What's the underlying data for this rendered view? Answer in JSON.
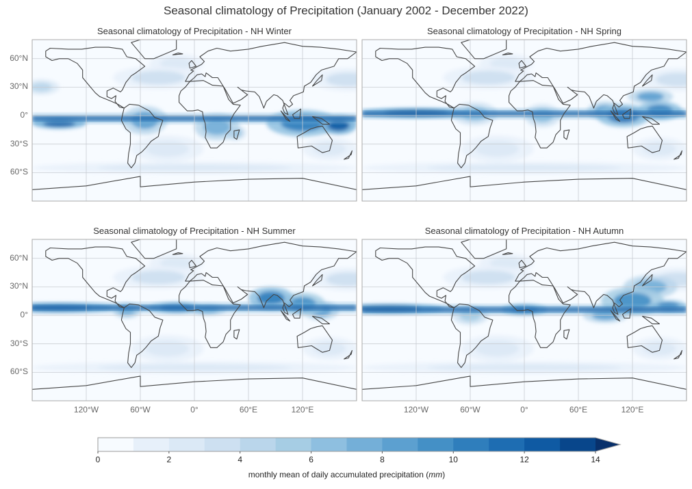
{
  "chart_data": {
    "type": "heatmap",
    "title": "Seasonal climatology of Precipitation (January 2002 - December 2022)",
    "variable": "Precipitation",
    "period": "January 2002 - December 2022",
    "panels": [
      {
        "season": "NH Winter",
        "title": "Seasonal climatology of Precipitation - NH Winter",
        "itcz_lat": -3
      },
      {
        "season": "NH Spring",
        "title": "Seasonal climatology of Precipitation - NH Spring",
        "itcz_lat": 2
      },
      {
        "season": "NH Summer",
        "title": "Seasonal climatology of Precipitation - NH Summer",
        "itcz_lat": 8
      },
      {
        "season": "NH Autumn",
        "title": "Seasonal climatology of Precipitation - NH Autumn",
        "itcz_lat": 6
      }
    ],
    "lat_ticks": [
      "60°N",
      "30°N",
      "0°",
      "30°S",
      "60°S"
    ],
    "lat_values": [
      60,
      30,
      0,
      -30,
      -60
    ],
    "lon_ticks": [
      "120°W",
      "60°W",
      "0°",
      "60°E",
      "120°E"
    ],
    "lon_values": [
      -120,
      -60,
      0,
      60,
      120
    ],
    "lon_range": [
      -180,
      180
    ],
    "lat_range": [
      -90,
      90
    ],
    "colorbar": {
      "min": 0,
      "max": 14,
      "levels": 14,
      "extend": "max",
      "ticks": [
        0,
        2,
        4,
        6,
        8,
        10,
        12,
        14
      ],
      "tick_labels": [
        "0",
        "2",
        "4",
        "6",
        "8",
        "10",
        "12",
        "14"
      ],
      "label_prefix": "monthly mean of daily accumulated precipitation (",
      "label_unit": "mm",
      "label_suffix": ")",
      "colors": [
        "#f7fbff",
        "#e7f0fa",
        "#dbe9f6",
        "#cde0f1",
        "#bad6eb",
        "#a6cde4",
        "#8ebfe0",
        "#74afd8",
        "#5ca0d0",
        "#4490c6",
        "#2f7ebc",
        "#1e6db2",
        "#0f5aa3",
        "#08468b",
        "#08306b"
      ]
    }
  }
}
